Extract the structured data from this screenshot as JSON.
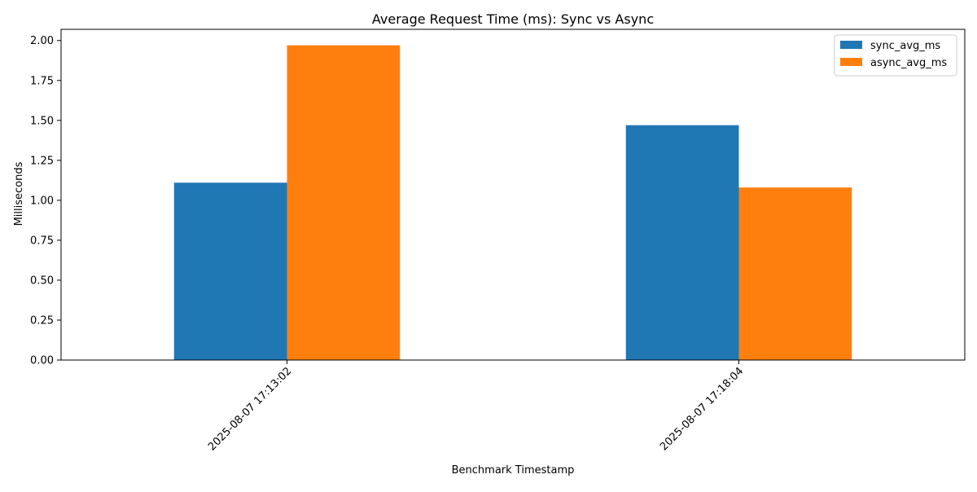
{
  "chart_data": {
    "type": "bar",
    "title": "Average Request Time (ms): Sync vs Async",
    "xlabel": "Benchmark Timestamp",
    "ylabel": "Milliseconds",
    "categories": [
      "2025-08-07 17:13:02",
      "2025-08-07 17:18:04"
    ],
    "series": [
      {
        "name": "sync_avg_ms",
        "color": "#1f77b4",
        "values": [
          1.11,
          1.47
        ]
      },
      {
        "name": "async_avg_ms",
        "color": "#ff7f0e",
        "values": [
          1.97,
          1.08
        ]
      }
    ],
    "ylim": [
      0,
      2.07
    ],
    "yticks": [
      "0.00",
      "0.25",
      "0.50",
      "0.75",
      "1.00",
      "1.25",
      "1.50",
      "1.75",
      "2.00"
    ],
    "grid": false,
    "legend_position": "top-right"
  }
}
